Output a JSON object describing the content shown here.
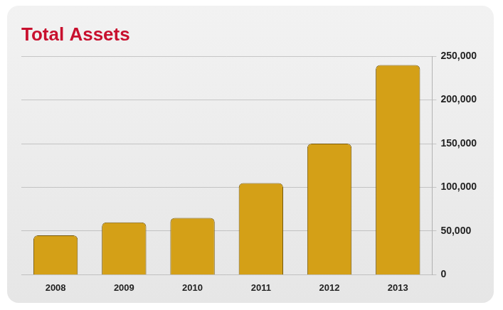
{
  "chart_data": {
    "type": "bar",
    "title": "Total Assets",
    "categories": [
      "2008",
      "2009",
      "2010",
      "2011",
      "2012",
      "2013"
    ],
    "values": [
      45000,
      60000,
      65000,
      105000,
      150000,
      240000
    ],
    "color": "#d4a017",
    "ylim": [
      0,
      250000
    ],
    "yticks": [
      0,
      {
        "value": 50000,
        "label": "50,000"
      },
      {
        "value": 100000,
        "label": "100,000"
      },
      {
        "value": 150000,
        "label": "150,000"
      },
      {
        "value": 200000,
        "label": "200,000"
      },
      {
        "value": 250000,
        "label": "250,000"
      }
    ],
    "grid": true
  }
}
